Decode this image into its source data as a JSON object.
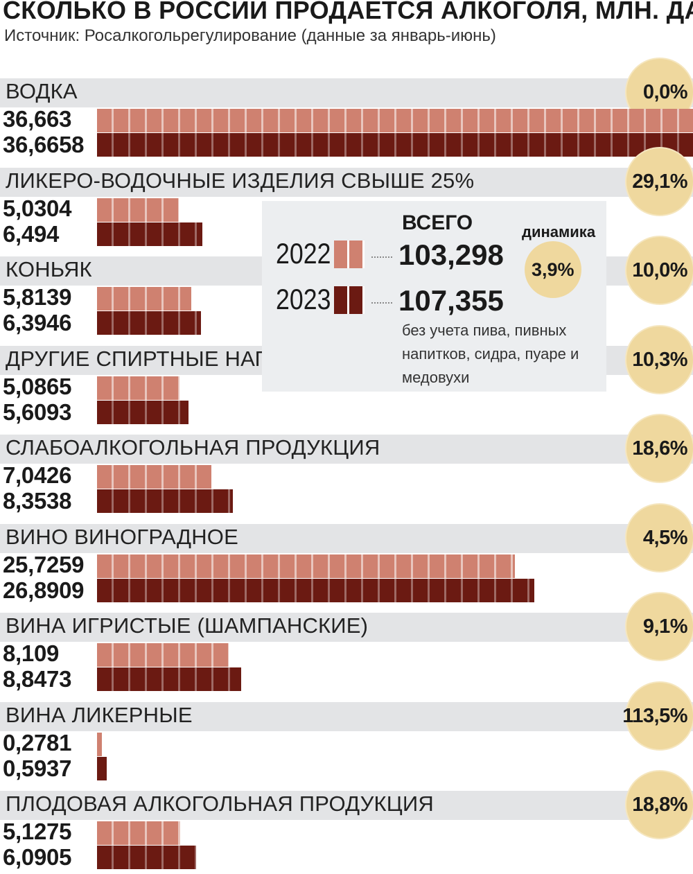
{
  "title": "СКОЛЬКО В РОССИИ ПРОДАЕТСЯ АЛКОГОЛЯ, МЛН. ДАЛ",
  "source": "Источник: Росалкогольрегулирование (данные за январь-июнь)",
  "colors": {
    "y2022": "#cf8170",
    "y2023": "#6b1a12",
    "circle": "#efd89e",
    "band": "#e3e4e6"
  },
  "summary": {
    "header": "ВСЕГО",
    "dynamics_label": "динамика",
    "dynamics_value": "3,9%",
    "year_2022": "2022",
    "year_2023": "2023",
    "total_2022": "103,298",
    "total_2023": "107,355",
    "note": "без учета пива, пивных напитков, сидра, пуаре и медовухи"
  },
  "chart_data": {
    "type": "bar",
    "title": "СКОЛЬКО В РОССИИ ПРОДАЕТСЯ АЛКОГОЛЯ, МЛН. ДАЛ",
    "xlabel": "",
    "ylabel": "млн. дал",
    "xlim": [
      0,
      36.6658
    ],
    "series_names": [
      "2022",
      "2023"
    ],
    "categories": [
      {
        "name": "ВОДКА",
        "v2022": 36.663,
        "v2023": 36.6658,
        "label2022": "36,663",
        "label2023": "36,6658",
        "change": "0,0%"
      },
      {
        "name": "ЛИКЕРО-ВОДОЧНЫЕ ИЗДЕЛИЯ СВЫШЕ 25%",
        "v2022": 5.0304,
        "v2023": 6.494,
        "label2022": "5,0304",
        "label2023": "6,494",
        "change": "29,1%"
      },
      {
        "name": "КОНЬЯК",
        "v2022": 5.8139,
        "v2023": 6.3946,
        "label2022": "5,8139",
        "label2023": "6,3946",
        "change": "10,0%"
      },
      {
        "name": "ДРУГИЕ СПИРТНЫЕ НАПИТКИ",
        "v2022": 5.0865,
        "v2023": 5.6093,
        "label2022": "5,0865",
        "label2023": "5,6093",
        "change": "10,3%"
      },
      {
        "name": "СЛАБОАЛКОГОЛЬНАЯ ПРОДУКЦИЯ",
        "v2022": 7.0426,
        "v2023": 8.3538,
        "label2022": "7,0426",
        "label2023": "8,3538",
        "change": "18,6%"
      },
      {
        "name": "ВИНО ВИНОГРАДНОЕ",
        "v2022": 25.7259,
        "v2023": 26.8909,
        "label2022": "25,7259",
        "label2023": "26,8909",
        "change": "4,5%"
      },
      {
        "name": "ВИНА ИГРИСТЫЕ (ШАМПАНСКИЕ)",
        "v2022": 8.109,
        "v2023": 8.8473,
        "label2022": "8,109",
        "label2023": "8,8473",
        "change": "9,1%"
      },
      {
        "name": "ВИНА ЛИКЕРНЫЕ",
        "v2022": 0.2781,
        "v2023": 0.5937,
        "label2022": "0,2781",
        "label2023": "0,5937",
        "change": "113,5%"
      },
      {
        "name": "ПЛОДОВАЯ АЛКОГОЛЬНАЯ ПРОДУКЦИЯ",
        "v2022": 5.1275,
        "v2023": 6.0905,
        "label2022": "5,1275",
        "label2023": "6,0905",
        "change": "18,8%"
      }
    ]
  }
}
